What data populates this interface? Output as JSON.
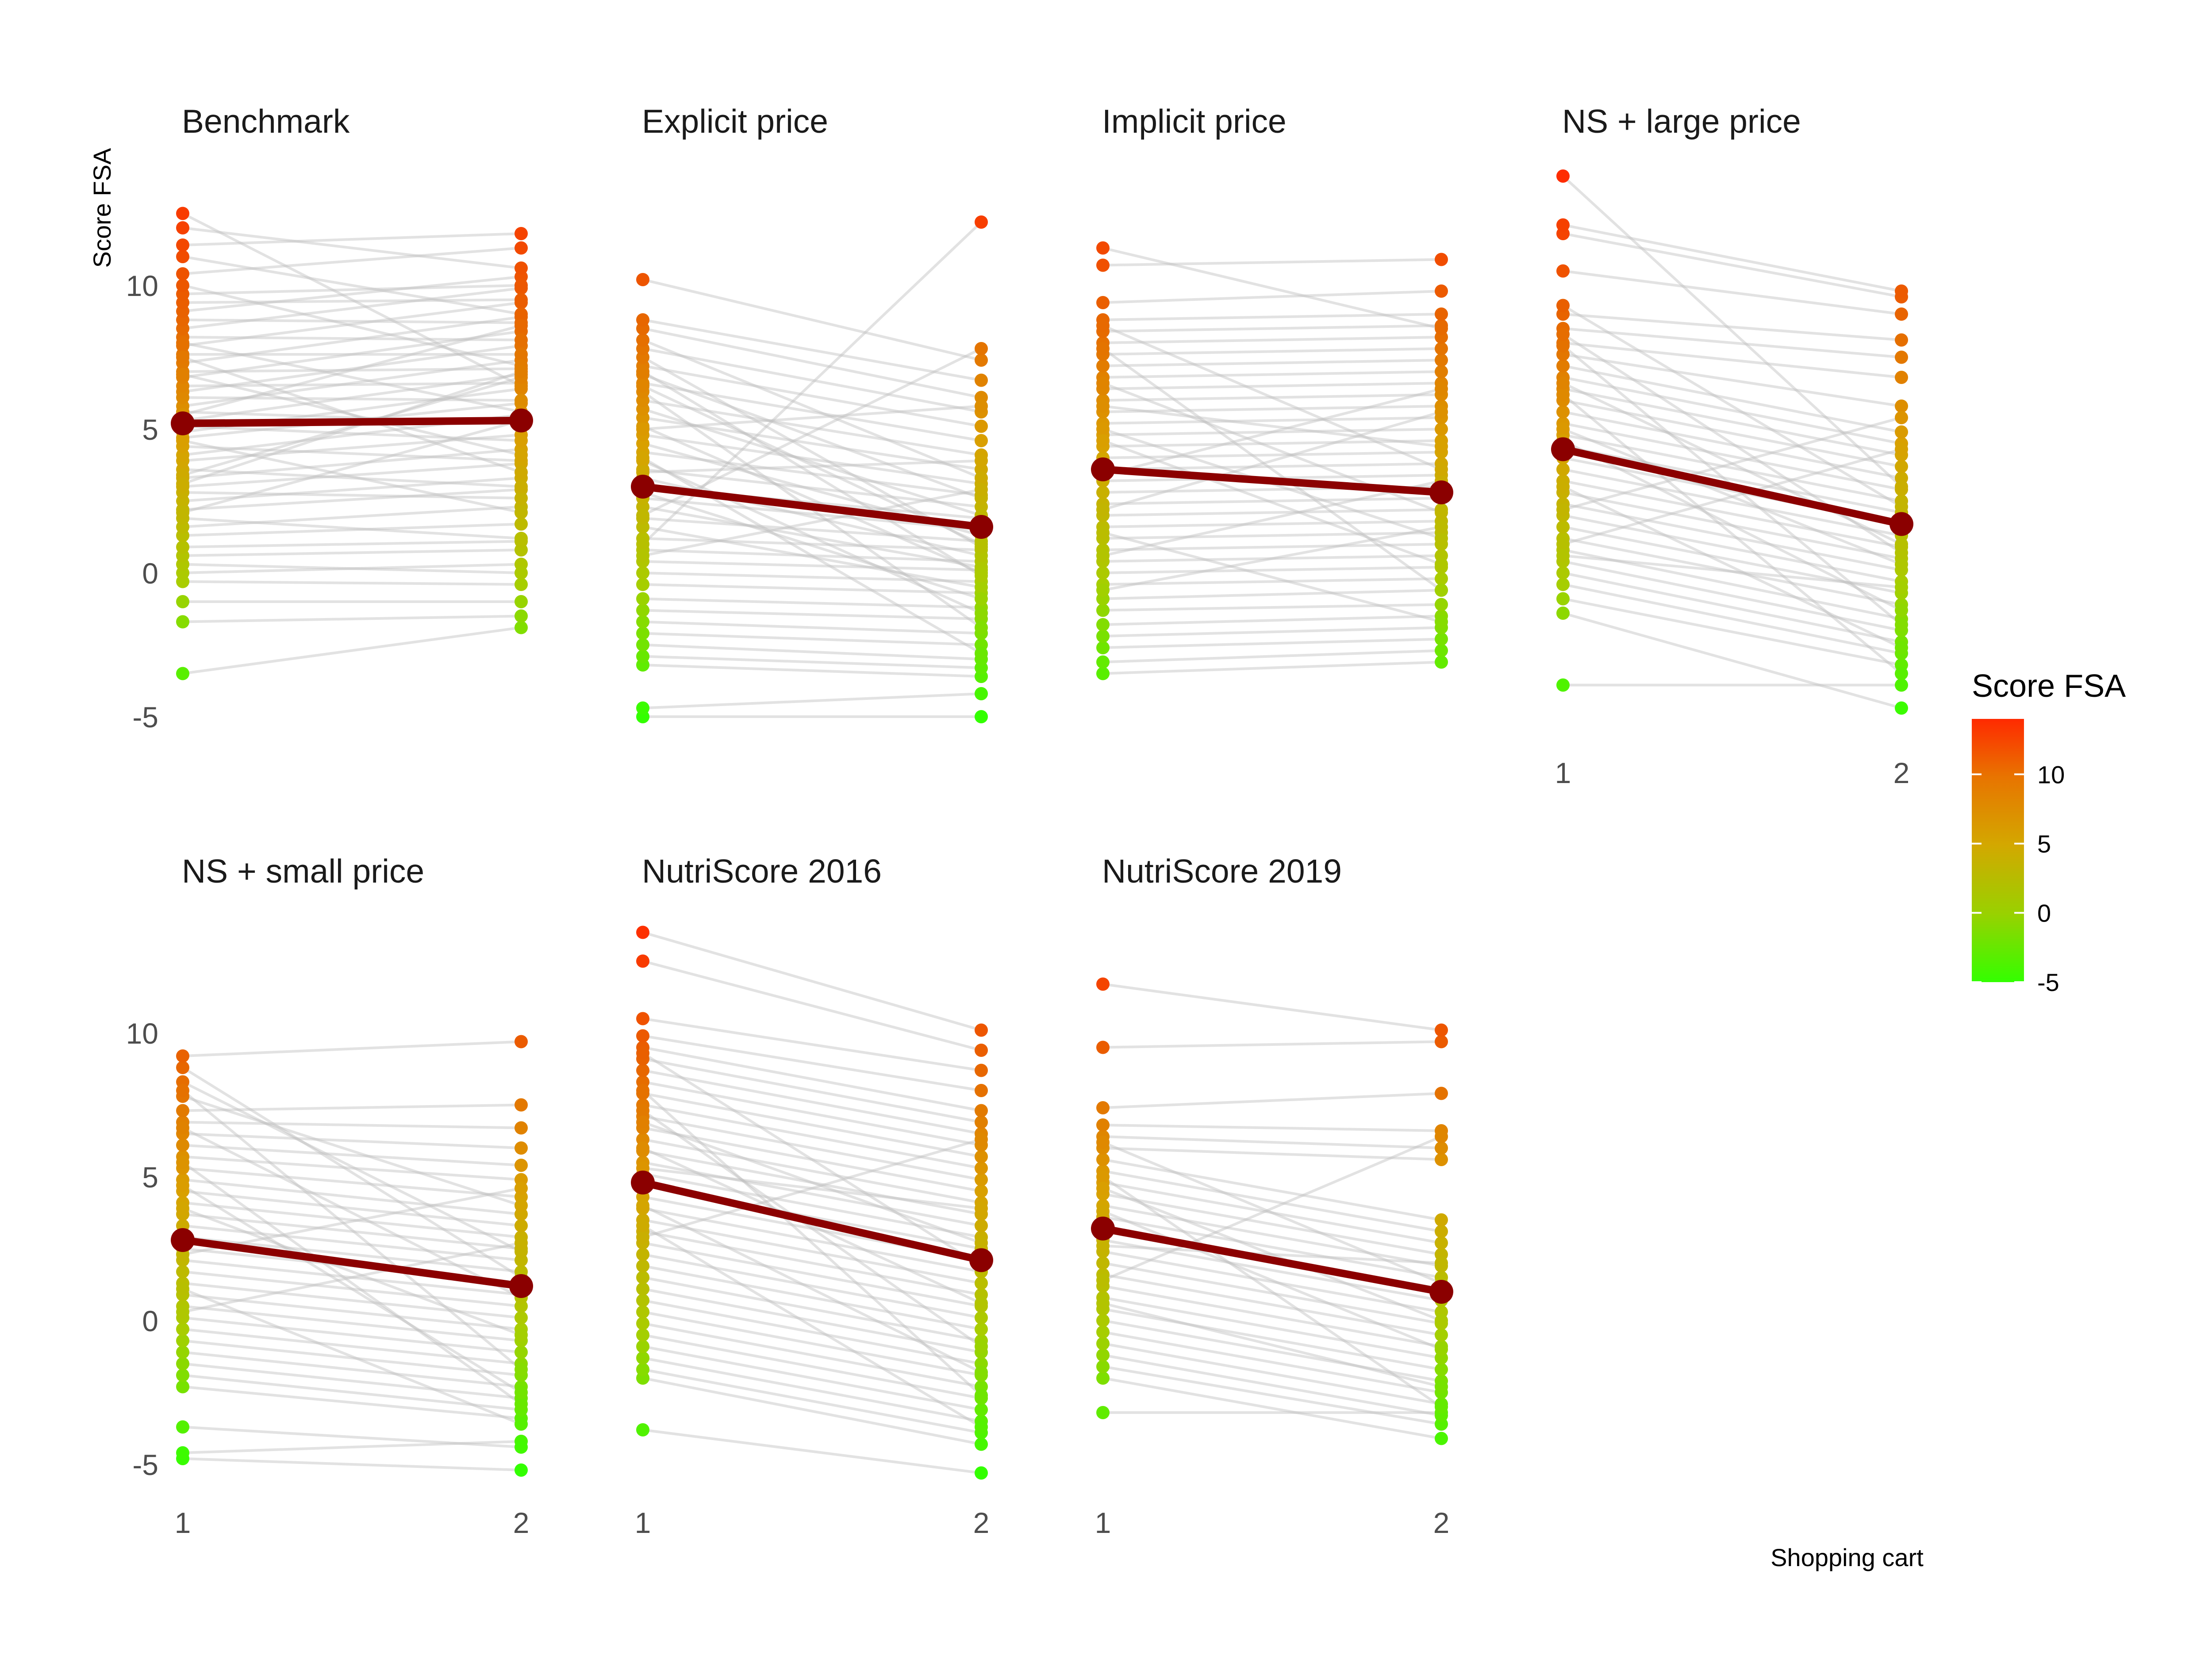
{
  "chart_data": {
    "type": "line",
    "ylabel": "Score FSA",
    "xlabel": "Shopping cart",
    "x_categories": [
      "1",
      "2"
    ],
    "y_ticks": [
      -5,
      0,
      5,
      10
    ],
    "ylim": [
      -5.5,
      13.5
    ],
    "mean_line_color": "#8B0000",
    "individual_line_color": "#bfbfbf",
    "legend": {
      "title": "Score FSA",
      "placement": "right",
      "ticks": [
        -5,
        0,
        5,
        10
      ],
      "range": [
        -5,
        14
      ],
      "colors": [
        "#33FF00",
        "#AACC00",
        "#D9A000",
        "#E96000",
        "#FF2A00"
      ]
    },
    "panels": [
      {
        "name": "Benchmark",
        "mean": [
          5.2,
          5.3
        ],
        "points": [
          [
            -3.5,
            -1.9
          ],
          [
            -1.7,
            -1.5
          ],
          [
            -1.0,
            -1.0
          ],
          [
            -0.3,
            -0.4
          ],
          [
            0.0,
            0.3
          ],
          [
            0.3,
            0.0
          ],
          [
            0.6,
            0.8
          ],
          [
            0.9,
            1.1
          ],
          [
            1.3,
            1.7
          ],
          [
            1.6,
            2.3
          ],
          [
            1.9,
            1.2
          ],
          [
            2.2,
            2.9
          ],
          [
            2.5,
            3.3
          ],
          [
            2.8,
            2.6
          ],
          [
            3.0,
            3.8
          ],
          [
            3.3,
            4.3
          ],
          [
            3.6,
            3.0
          ],
          [
            3.9,
            4.8
          ],
          [
            4.1,
            5.5
          ],
          [
            4.4,
            3.9
          ],
          [
            4.7,
            5.9
          ],
          [
            4.9,
            6.4
          ],
          [
            5.1,
            4.6
          ],
          [
            5.3,
            6.9
          ],
          [
            5.6,
            5.2
          ],
          [
            5.8,
            7.4
          ],
          [
            6.1,
            6.0
          ],
          [
            6.3,
            7.9
          ],
          [
            6.5,
            6.6
          ],
          [
            6.8,
            8.4
          ],
          [
            7.0,
            7.1
          ],
          [
            7.3,
            8.9
          ],
          [
            7.6,
            7.6
          ],
          [
            7.9,
            9.4
          ],
          [
            8.2,
            8.1
          ],
          [
            8.5,
            9.9
          ],
          [
            8.8,
            8.7
          ],
          [
            9.1,
            10.3
          ],
          [
            9.4,
            9.5
          ],
          [
            9.7,
            10.0
          ],
          [
            10.0,
            7.2
          ],
          [
            10.4,
            11.3
          ],
          [
            11.0,
            9.0
          ],
          [
            11.4,
            11.8
          ],
          [
            12.0,
            10.6
          ],
          [
            12.5,
            6.5
          ],
          [
            3.4,
            6.8
          ],
          [
            4.6,
            2.1
          ],
          [
            6.9,
            4.1
          ],
          [
            8.0,
            5.6
          ],
          [
            2.1,
            5.3
          ],
          [
            5.5,
            8.6
          ],
          [
            7.5,
            3.5
          ],
          [
            3.1,
            7.0
          ]
        ]
      },
      {
        "name": "Explicit price",
        "mean": [
          3.0,
          1.6
        ],
        "points": [
          [
            -5.0,
            -5.0
          ],
          [
            -4.7,
            -4.2
          ],
          [
            -3.2,
            -3.6
          ],
          [
            -2.9,
            -3.3
          ],
          [
            -2.5,
            -3.0
          ],
          [
            -2.1,
            -2.5
          ],
          [
            -1.7,
            -2.1
          ],
          [
            -1.3,
            -1.6
          ],
          [
            -0.9,
            -1.2
          ],
          [
            -0.4,
            -0.7
          ],
          [
            0.0,
            -0.3
          ],
          [
            0.4,
            0.1
          ],
          [
            0.8,
            0.4
          ],
          [
            1.2,
            0.8
          ],
          [
            1.6,
            -0.5
          ],
          [
            1.9,
            1.1
          ],
          [
            2.3,
            0.2
          ],
          [
            2.6,
            1.5
          ],
          [
            3.0,
            1.9
          ],
          [
            3.3,
            0.6
          ],
          [
            3.6,
            2.3
          ],
          [
            3.9,
            -1.4
          ],
          [
            4.2,
            2.7
          ],
          [
            4.5,
            1.3
          ],
          [
            4.8,
            3.1
          ],
          [
            5.1,
            0.0
          ],
          [
            5.4,
            3.6
          ],
          [
            5.7,
            2.0
          ],
          [
            6.0,
            4.1
          ],
          [
            6.3,
            -1.9
          ],
          [
            6.6,
            4.6
          ],
          [
            6.9,
            2.6
          ],
          [
            7.2,
            5.1
          ],
          [
            7.5,
            0.9
          ],
          [
            7.8,
            5.6
          ],
          [
            8.1,
            3.3
          ],
          [
            8.5,
            6.1
          ],
          [
            8.8,
            6.7
          ],
          [
            10.2,
            7.4
          ],
          [
            1.0,
            12.2
          ],
          [
            2.0,
            7.8
          ],
          [
            4.0,
            -2.8
          ],
          [
            5.0,
            5.8
          ],
          [
            6.5,
            1.0
          ],
          [
            7.0,
            -0.1
          ],
          [
            3.5,
            3.9
          ],
          [
            0.6,
            2.9
          ],
          [
            2.8,
            -0.9
          ]
        ]
      },
      {
        "name": "Implicit price",
        "mean": [
          3.6,
          2.8
        ],
        "points": [
          [
            -3.5,
            -3.1
          ],
          [
            -3.1,
            -2.7
          ],
          [
            -2.6,
            -2.3
          ],
          [
            -2.2,
            -1.9
          ],
          [
            -1.8,
            -1.5
          ],
          [
            -1.3,
            -1.1
          ],
          [
            -0.9,
            -0.6
          ],
          [
            -0.4,
            -0.2
          ],
          [
            0.0,
            0.2
          ],
          [
            0.4,
            0.6
          ],
          [
            0.8,
            1.0
          ],
          [
            1.2,
            1.4
          ],
          [
            1.6,
            1.8
          ],
          [
            2.0,
            2.2
          ],
          [
            2.4,
            2.6
          ],
          [
            2.8,
            3.0
          ],
          [
            3.2,
            3.4
          ],
          [
            3.6,
            3.8
          ],
          [
            4.0,
            4.2
          ],
          [
            4.4,
            4.6
          ],
          [
            4.8,
            5.0
          ],
          [
            5.2,
            5.4
          ],
          [
            5.6,
            5.8
          ],
          [
            6.0,
            6.2
          ],
          [
            6.4,
            6.6
          ],
          [
            6.8,
            7.0
          ],
          [
            7.2,
            7.4
          ],
          [
            7.6,
            7.8
          ],
          [
            8.0,
            8.2
          ],
          [
            8.4,
            8.6
          ],
          [
            8.8,
            9.0
          ],
          [
            9.4,
            9.8
          ],
          [
            10.7,
            10.9
          ],
          [
            11.3,
            8.5
          ],
          [
            5.0,
            1.2
          ],
          [
            6.6,
            2.1
          ],
          [
            7.8,
            -0.6
          ],
          [
            3.4,
            6.4
          ],
          [
            2.2,
            5.6
          ],
          [
            1.4,
            -1.7
          ],
          [
            4.6,
            0.3
          ],
          [
            0.6,
            3.2
          ],
          [
            -0.6,
            1.6
          ],
          [
            5.8,
            4.4
          ],
          [
            8.6,
            3.6
          ]
        ]
      },
      {
        "name": "NS + large price",
        "mean": [
          4.3,
          1.7
        ],
        "points": [
          [
            -3.9,
            -3.9
          ],
          [
            -1.4,
            -4.7
          ],
          [
            -0.9,
            -3.2
          ],
          [
            -0.4,
            -2.8
          ],
          [
            0.0,
            -2.4
          ],
          [
            0.4,
            -2.0
          ],
          [
            0.8,
            -1.6
          ],
          [
            1.2,
            -1.1
          ],
          [
            1.6,
            -0.7
          ],
          [
            2.0,
            -0.3
          ],
          [
            2.4,
            0.1
          ],
          [
            2.8,
            0.5
          ],
          [
            3.2,
            0.9
          ],
          [
            3.6,
            1.3
          ],
          [
            4.0,
            1.7
          ],
          [
            4.4,
            2.1
          ],
          [
            4.8,
            2.5
          ],
          [
            5.2,
            2.9
          ],
          [
            5.6,
            3.3
          ],
          [
            6.0,
            3.7
          ],
          [
            6.4,
            4.1
          ],
          [
            6.8,
            4.5
          ],
          [
            7.2,
            4.9
          ],
          [
            7.6,
            5.8
          ],
          [
            8.0,
            6.8
          ],
          [
            8.5,
            7.5
          ],
          [
            9.0,
            8.1
          ],
          [
            10.5,
            9.0
          ],
          [
            11.8,
            9.6
          ],
          [
            12.1,
            9.8
          ],
          [
            13.8,
            3.0
          ],
          [
            7.9,
            -1.8
          ],
          [
            6.2,
            -3.5
          ],
          [
            5.0,
            0.3
          ],
          [
            3.0,
            -2.6
          ],
          [
            1.0,
            4.3
          ],
          [
            8.3,
            0.7
          ],
          [
            4.6,
            -1.3
          ],
          [
            2.2,
            5.4
          ],
          [
            0.6,
            -0.5
          ],
          [
            9.3,
            2.3
          ],
          [
            6.6,
            1.0
          ]
        ]
      },
      {
        "name": "NS + small price",
        "mean": [
          2.8,
          1.2
        ],
        "points": [
          [
            -4.8,
            -5.2
          ],
          [
            -4.6,
            -4.2
          ],
          [
            -3.7,
            -4.4
          ],
          [
            -2.3,
            -3.4
          ],
          [
            -1.9,
            -3.1
          ],
          [
            -1.5,
            -2.7
          ],
          [
            -1.1,
            -2.3
          ],
          [
            -0.7,
            -1.9
          ],
          [
            -0.3,
            -1.5
          ],
          [
            0.1,
            -1.1
          ],
          [
            0.5,
            -0.7
          ],
          [
            0.9,
            -0.3
          ],
          [
            1.3,
            0.1
          ],
          [
            1.7,
            0.5
          ],
          [
            2.1,
            0.9
          ],
          [
            2.5,
            1.3
          ],
          [
            2.9,
            1.7
          ],
          [
            3.3,
            2.1
          ],
          [
            3.7,
            2.5
          ],
          [
            4.1,
            2.9
          ],
          [
            4.5,
            3.3
          ],
          [
            4.9,
            3.7
          ],
          [
            5.3,
            4.3
          ],
          [
            5.7,
            4.9
          ],
          [
            6.1,
            5.4
          ],
          [
            6.5,
            6.0
          ],
          [
            6.9,
            6.7
          ],
          [
            7.3,
            7.5
          ],
          [
            7.8,
            4.0
          ],
          [
            8.3,
            2.4
          ],
          [
            8.8,
            1.5
          ],
          [
            9.2,
            9.7
          ],
          [
            5.5,
            -2.9
          ],
          [
            3.9,
            -0.5
          ],
          [
            2.3,
            4.6
          ],
          [
            1.1,
            -3.6
          ],
          [
            0.3,
            2.7
          ],
          [
            6.7,
            0.8
          ],
          [
            8.0,
            -1.7
          ],
          [
            4.7,
            -2.5
          ]
        ]
      },
      {
        "name": "NutriScore 2016",
        "mean": [
          4.8,
          2.1
        ],
        "points": [
          [
            -3.8,
            -5.3
          ],
          [
            -2.0,
            -4.3
          ],
          [
            -1.7,
            -3.9
          ],
          [
            -1.3,
            -3.5
          ],
          [
            -0.9,
            -3.1
          ],
          [
            -0.5,
            -2.7
          ],
          [
            -0.1,
            -2.3
          ],
          [
            0.3,
            -1.9
          ],
          [
            0.7,
            -1.5
          ],
          [
            1.1,
            -1.1
          ],
          [
            1.5,
            -0.7
          ],
          [
            1.9,
            -0.3
          ],
          [
            2.3,
            0.1
          ],
          [
            2.7,
            0.5
          ],
          [
            3.1,
            0.9
          ],
          [
            3.5,
            1.3
          ],
          [
            3.9,
            1.7
          ],
          [
            4.3,
            2.1
          ],
          [
            4.7,
            2.5
          ],
          [
            5.1,
            2.9
          ],
          [
            5.5,
            3.3
          ],
          [
            5.9,
            3.7
          ],
          [
            6.3,
            4.1
          ],
          [
            6.7,
            4.5
          ],
          [
            7.1,
            4.9
          ],
          [
            7.5,
            5.3
          ],
          [
            7.9,
            5.7
          ],
          [
            8.3,
            6.1
          ],
          [
            8.7,
            6.5
          ],
          [
            9.1,
            6.9
          ],
          [
            9.5,
            7.3
          ],
          [
            9.9,
            8.0
          ],
          [
            10.5,
            8.7
          ],
          [
            12.5,
            9.4
          ],
          [
            13.5,
            10.1
          ],
          [
            4.0,
            -1.8
          ],
          [
            6.0,
            0.6
          ],
          [
            8.0,
            -2.6
          ],
          [
            5.3,
            3.9
          ],
          [
            2.9,
            6.3
          ],
          [
            9.3,
            1.9
          ],
          [
            7.3,
            -0.9
          ],
          [
            3.3,
            -3.7
          ],
          [
            6.9,
            2.7
          ]
        ]
      },
      {
        "name": "NutriScore 2019",
        "mean": [
          3.2,
          1.0
        ],
        "points": [
          [
            -3.2,
            -3.2
          ],
          [
            -2.0,
            -4.1
          ],
          [
            -1.6,
            -3.6
          ],
          [
            -1.2,
            -3.3
          ],
          [
            -0.8,
            -2.9
          ],
          [
            -0.4,
            -2.5
          ],
          [
            0.0,
            -2.1
          ],
          [
            0.4,
            -1.7
          ],
          [
            0.8,
            -1.3
          ],
          [
            1.2,
            -0.9
          ],
          [
            1.6,
            -0.5
          ],
          [
            2.0,
            -0.1
          ],
          [
            2.4,
            0.3
          ],
          [
            2.8,
            0.7
          ],
          [
            3.2,
            1.1
          ],
          [
            3.6,
            1.5
          ],
          [
            4.0,
            1.9
          ],
          [
            4.4,
            2.3
          ],
          [
            4.8,
            2.7
          ],
          [
            5.2,
            3.1
          ],
          [
            5.6,
            3.5
          ],
          [
            6.0,
            5.6
          ],
          [
            6.4,
            6.0
          ],
          [
            6.8,
            6.6
          ],
          [
            7.4,
            7.9
          ],
          [
            9.5,
            9.7
          ],
          [
            11.7,
            10.1
          ],
          [
            5.0,
            -3.0
          ],
          [
            3.8,
            -1.0
          ],
          [
            2.6,
            2.0
          ],
          [
            1.4,
            6.4
          ],
          [
            0.6,
            -2.3
          ],
          [
            4.6,
            0.0
          ],
          [
            6.2,
            1.3
          ]
        ]
      }
    ]
  }
}
